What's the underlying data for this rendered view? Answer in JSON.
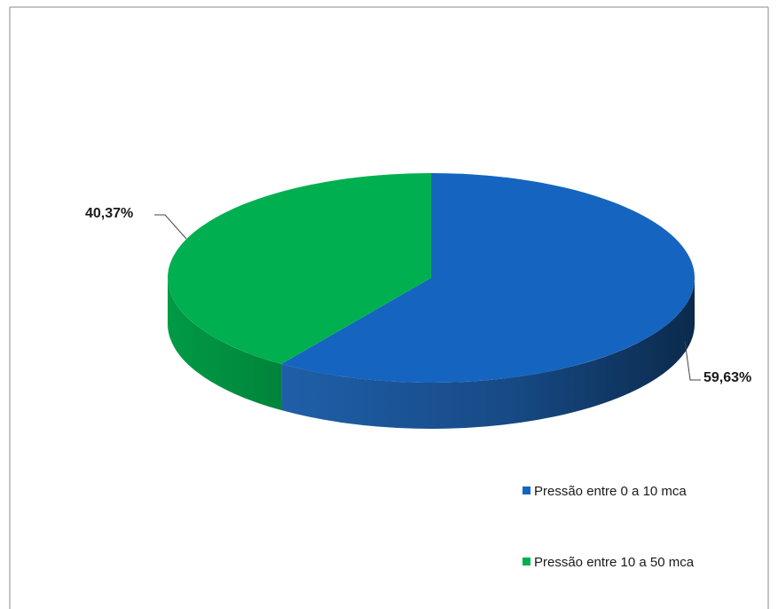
{
  "chart_data": {
    "type": "pie",
    "title": "",
    "categories": [
      "Pressão entre 0 a 10 mca",
      "Pressão entre 10 a 50 mca"
    ],
    "values": [
      59.63,
      40.37
    ],
    "data_labels": [
      "59,63%",
      "40,37%"
    ],
    "colors": [
      "#1565c0",
      "#00b050"
    ],
    "legend_position": "bottom-right",
    "style": "3d"
  }
}
